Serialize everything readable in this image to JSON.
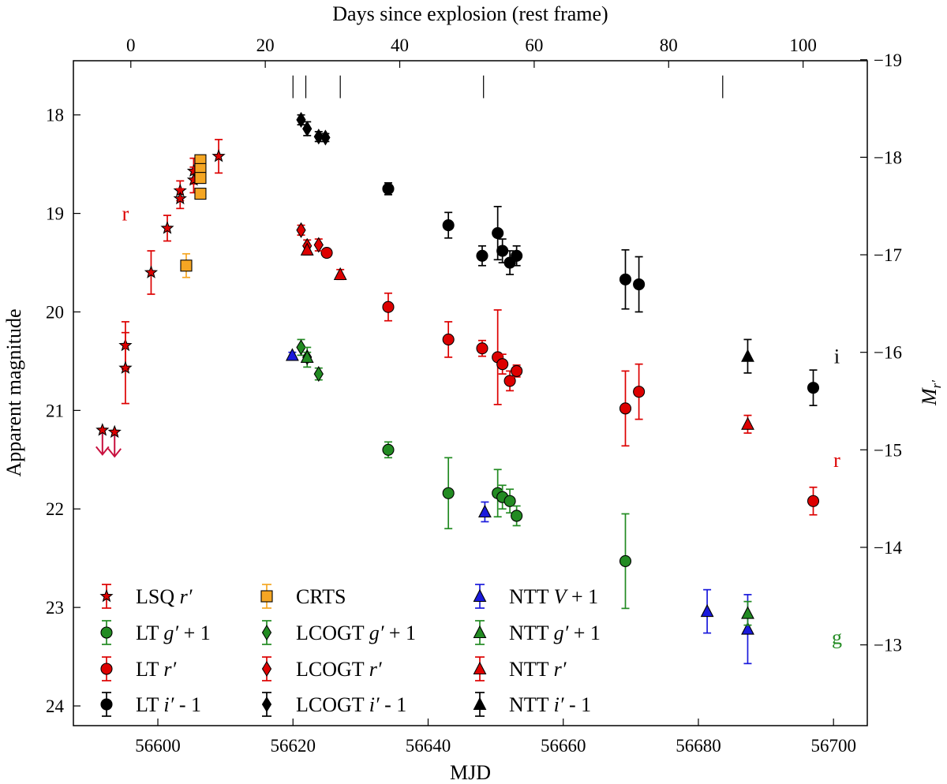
{
  "chart_data": {
    "type": "scatter",
    "xlabel": "MJD",
    "ylabel": "Apparent magnitude",
    "x2label": "Days since explosion (rest frame)",
    "y2label": "M",
    "y2label_sub": "r′",
    "xlim": [
      56587.5,
      56705
    ],
    "ylim": [
      24.2,
      17.45
    ],
    "x_ticks": [
      {
        "v": 56600,
        "label": "56600"
      },
      {
        "v": 56620,
        "label": "56620"
      },
      {
        "v": 56640,
        "label": "56640"
      },
      {
        "v": 56660,
        "label": "56660"
      },
      {
        "v": 56680,
        "label": "56680"
      },
      {
        "v": 56700,
        "label": "56700"
      }
    ],
    "y_ticks": [
      {
        "v": 18,
        "label": "18"
      },
      {
        "v": 19,
        "label": "19"
      },
      {
        "v": 20,
        "label": "20"
      },
      {
        "v": 21,
        "label": "21"
      },
      {
        "v": 22,
        "label": "22"
      },
      {
        "v": 23,
        "label": "23"
      },
      {
        "v": 24,
        "label": "24"
      }
    ],
    "x2_ticks": [
      {
        "v": 56596.0,
        "label": "0"
      },
      {
        "v": 56615.9,
        "label": "20"
      },
      {
        "v": 56635.8,
        "label": "40"
      },
      {
        "v": 56655.7,
        "label": "60"
      },
      {
        "v": 56675.6,
        "label": "80"
      },
      {
        "v": 56695.5,
        "label": "100"
      }
    ],
    "y2_ticks": [
      {
        "v": 17.44,
        "label": "−19"
      },
      {
        "v": 18.43,
        "label": "−18"
      },
      {
        "v": 19.42,
        "label": "−17"
      },
      {
        "v": 20.41,
        "label": "−16"
      },
      {
        "v": 21.4,
        "label": "−15"
      },
      {
        "v": 22.39,
        "label": "−14"
      },
      {
        "v": 23.38,
        "label": "−13"
      }
    ],
    "spectra_epochs": [
      56620.0,
      56621.9,
      56627.0,
      56648.2,
      56683.6
    ],
    "band_labels": [
      {
        "text": "r",
        "x": 56595.2,
        "y": 19.0,
        "color": "#dd0000"
      },
      {
        "text": "i",
        "x": 56700.5,
        "y": 20.45,
        "color": "#000000"
      },
      {
        "text": "r",
        "x": 56700.5,
        "y": 21.5,
        "color": "#dd0000"
      },
      {
        "text": "g",
        "x": 56700.5,
        "y": 23.3,
        "color": "#228b22"
      }
    ],
    "series": [
      {
        "name": "LSQ r′ upper limit",
        "marker": "star",
        "color": "#dd0000",
        "upper_limit": true,
        "legend": false,
        "points": [
          [
            56591.8,
            21.2
          ],
          [
            56593.6,
            21.22
          ]
        ]
      },
      {
        "name": "LSQ r′",
        "label_main": "LSQ ",
        "label_ital": "r′",
        "label_tail": "",
        "marker": "star",
        "color": "#dd0000",
        "legend": true,
        "points": [
          [
            56595.2,
            20.34,
            0.24
          ],
          [
            56595.2,
            20.57,
            0.36
          ],
          [
            56599.0,
            19.6,
            0.22
          ],
          [
            56601.4,
            19.15,
            0.13
          ],
          [
            56603.3,
            18.77,
            0.1
          ],
          [
            56603.3,
            18.85,
            0.1
          ],
          [
            56605.3,
            18.57,
            0.13
          ],
          [
            56605.3,
            18.66,
            0.13
          ],
          [
            56609.0,
            18.42,
            0.17
          ]
        ]
      },
      {
        "name": "LT g′ + 1",
        "label_main": "LT ",
        "label_ital": "g′",
        "label_tail": " + 1",
        "marker": "circle",
        "color": "#228b22",
        "legend": true,
        "points": [
          [
            56634.1,
            21.4,
            0.08
          ],
          [
            56643.0,
            21.84,
            0.36
          ],
          [
            56650.3,
            21.84,
            0.24
          ],
          [
            56651.0,
            21.88,
            0.12
          ],
          [
            56652.1,
            21.92,
            0.12
          ],
          [
            56653.1,
            22.07,
            0.1
          ],
          [
            56669.2,
            22.53,
            0.48
          ]
        ]
      },
      {
        "name": "LT r′",
        "label_main": "LT ",
        "label_ital": "r′",
        "label_tail": "",
        "marker": "circle",
        "color": "#dd0000",
        "legend": true,
        "points": [
          [
            56625.0,
            19.4,
            0.04
          ],
          [
            56634.1,
            19.95,
            0.14
          ],
          [
            56643.0,
            20.28,
            0.18
          ],
          [
            56648.0,
            20.37,
            0.08
          ],
          [
            56650.3,
            20.46,
            0.48
          ],
          [
            56651.0,
            20.53,
            0.1
          ],
          [
            56652.1,
            20.7,
            0.1
          ],
          [
            56653.1,
            20.6,
            0.06
          ],
          [
            56669.2,
            20.98,
            0.38
          ],
          [
            56671.2,
            20.81,
            0.28
          ],
          [
            56697.0,
            21.92,
            0.14
          ]
        ]
      },
      {
        "name": "LT i′ - 1",
        "label_main": "LT ",
        "label_ital": "i′",
        "label_tail": " - 1",
        "marker": "circle",
        "color": "#000000",
        "legend": true,
        "points": [
          [
            56634.1,
            18.75,
            0.06
          ],
          [
            56643.0,
            19.12,
            0.13
          ],
          [
            56648.0,
            19.43,
            0.1
          ],
          [
            56650.3,
            19.2,
            0.27
          ],
          [
            56651.0,
            19.38,
            0.12
          ],
          [
            56652.1,
            19.5,
            0.12
          ],
          [
            56653.1,
            19.43,
            0.1
          ],
          [
            56669.2,
            19.67,
            0.3
          ],
          [
            56671.2,
            19.72,
            0.28
          ],
          [
            56697.0,
            20.77,
            0.18
          ]
        ]
      },
      {
        "name": "CRTS",
        "label_main": "CRTS",
        "label_ital": "",
        "label_tail": "",
        "marker": "square",
        "color": "#f5a623",
        "legend": true,
        "points": [
          [
            56604.2,
            19.53,
            0.12
          ],
          [
            56606.3,
            18.46,
            0.03
          ],
          [
            56606.3,
            18.55,
            0.03
          ],
          [
            56606.3,
            18.64,
            0.03
          ],
          [
            56606.3,
            18.8,
            0.03
          ]
        ]
      },
      {
        "name": "LCOGT g′ + 1",
        "label_main": "LCOGT ",
        "label_ital": "g′",
        "label_tail": " + 1",
        "marker": "diamond",
        "color": "#228b22",
        "legend": true,
        "points": [
          [
            56621.2,
            20.36,
            0.08
          ],
          [
            56622.1,
            20.46,
            0.1
          ],
          [
            56623.8,
            20.63,
            0.06
          ]
        ]
      },
      {
        "name": "LCOGT r′",
        "label_main": "LCOGT ",
        "label_ital": "r′",
        "label_tail": "",
        "marker": "diamond",
        "color": "#dd0000",
        "legend": true,
        "points": [
          [
            56621.2,
            19.17,
            0.05
          ],
          [
            56622.1,
            19.33,
            0.06
          ],
          [
            56623.8,
            19.32,
            0.06
          ]
        ]
      },
      {
        "name": "LCOGT i′ - 1",
        "label_main": "LCOGT ",
        "label_ital": "i′",
        "label_tail": " - 1",
        "marker": "diamond",
        "color": "#000000",
        "legend": true,
        "points": [
          [
            56621.2,
            18.05,
            0.05
          ],
          [
            56622.1,
            18.14,
            0.07
          ],
          [
            56623.8,
            18.22,
            0.05
          ],
          [
            56624.8,
            18.23,
            0.04
          ]
        ]
      },
      {
        "name": "NTT V + 1",
        "label_main": "NTT ",
        "label_ital": "V",
        "label_tail": " + 1",
        "marker": "triangle",
        "color": "#1a1adc",
        "legend": true,
        "points": [
          [
            56619.9,
            20.44,
            0.03
          ],
          [
            56648.4,
            22.03,
            0.1
          ],
          [
            56681.3,
            23.04,
            0.22
          ],
          [
            56687.3,
            23.22,
            0.35
          ]
        ]
      },
      {
        "name": "NTT g′ + 1",
        "label_main": "NTT ",
        "label_ital": "g′",
        "label_tail": " + 1",
        "marker": "triangle",
        "color": "#228b22",
        "legend": true,
        "points": [
          [
            56622.1,
            20.46,
            0.05
          ],
          [
            56687.3,
            23.06,
            0.12
          ]
        ]
      },
      {
        "name": "NTT r′",
        "label_main": "NTT ",
        "label_ital": "r′",
        "label_tail": "",
        "marker": "triangle",
        "color": "#dd0000",
        "legend": true,
        "points": [
          [
            56622.1,
            19.37,
            0.05
          ],
          [
            56627.0,
            19.62,
            0.05
          ],
          [
            56687.3,
            21.14,
            0.09
          ]
        ]
      },
      {
        "name": "NTT i′ - 1",
        "label_main": "NTT ",
        "label_ital": "i′",
        "label_tail": " - 1",
        "marker": "triangle",
        "color": "#000000",
        "legend": true,
        "points": [
          [
            56687.3,
            20.45,
            0.17
          ]
        ]
      }
    ]
  }
}
